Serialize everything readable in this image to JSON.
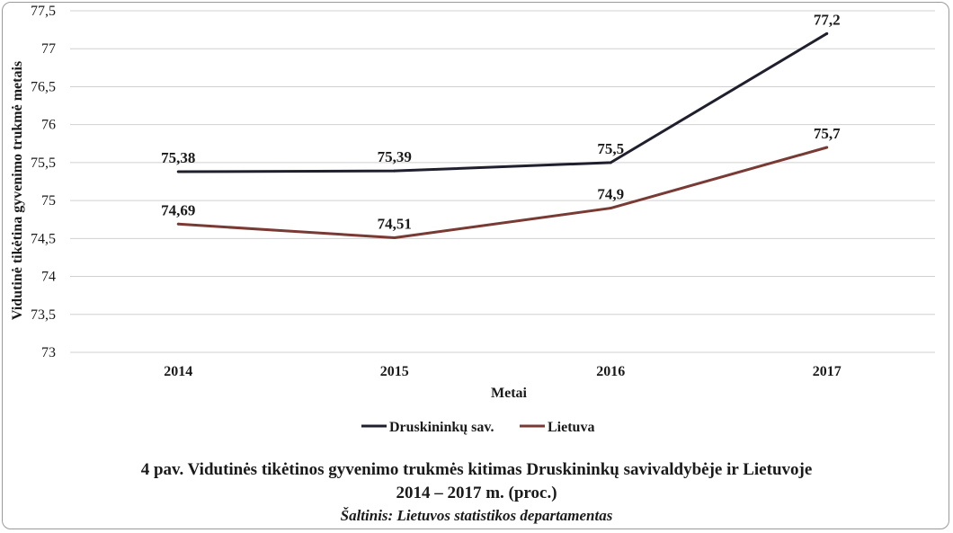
{
  "chart_data": {
    "type": "line",
    "categories": [
      "2014",
      "2015",
      "2016",
      "2017"
    ],
    "series": [
      {
        "name": "Druskininkų sav.",
        "values": [
          75.38,
          75.39,
          75.5,
          77.2
        ],
        "labels": [
          "75,38",
          "75,39",
          "75,5",
          "77,2"
        ],
        "color": "#1f1f2e"
      },
      {
        "name": "Lietuva",
        "values": [
          74.69,
          74.51,
          74.9,
          75.7
        ],
        "labels": [
          "74,69",
          "74,51",
          "74,9",
          "75,7"
        ],
        "color": "#7a3a34"
      }
    ],
    "ylabel": "Vidutinė tikėtina gyvenimo trukmė metais",
    "xlabel": "Metai",
    "ylim": [
      73,
      77.5
    ],
    "yticks": [
      73,
      73.5,
      74,
      74.5,
      75,
      75.5,
      76,
      76.5,
      77,
      77.5
    ],
    "ytick_labels": [
      "73",
      "73,5",
      "74",
      "74,5",
      "75",
      "75,5",
      "76",
      "76,5",
      "77",
      "77,5"
    ],
    "grid": true,
    "legend_position": "bottom"
  },
  "caption": {
    "line1": "4 pav. Vidutinės tikėtinos gyvenimo trukmės kitimas Druskininkų savivaldybėje ir Lietuvoje",
    "line2": "2014 – 2017 m. (proc.)",
    "source": "Šaltinis: Lietuvos statistikos departamentas"
  }
}
